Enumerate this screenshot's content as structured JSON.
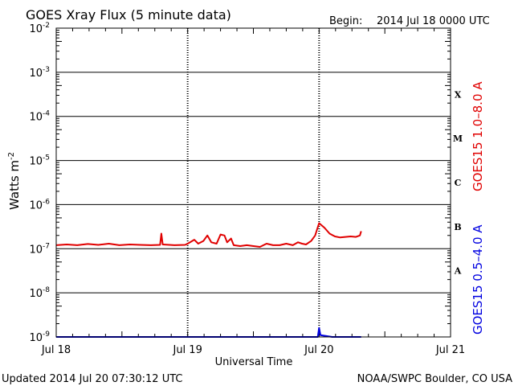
{
  "chart_data": {
    "type": "line",
    "title": "GOES Xray Flux (5 minute data)",
    "begin_label": "Begin:",
    "begin_value": "2014 Jul 18 0000 UTC",
    "xlabel": "Universal Time",
    "ylabel": "Watts m",
    "ylabel_sup": "-2",
    "y_scale": "log",
    "ylim": [
      1e-09,
      0.01
    ],
    "y_ticks": [
      {
        "base": "10",
        "exp": "-2"
      },
      {
        "base": "10",
        "exp": "-3"
      },
      {
        "base": "10",
        "exp": "-4"
      },
      {
        "base": "10",
        "exp": "-5"
      },
      {
        "base": "10",
        "exp": "-6"
      },
      {
        "base": "10",
        "exp": "-7"
      },
      {
        "base": "10",
        "exp": "-8"
      },
      {
        "base": "10",
        "exp": "-9"
      }
    ],
    "x_ticks": [
      "Jul 18",
      "Jul 19",
      "Jul 20",
      "Jul 21"
    ],
    "xlim_days": [
      0,
      3
    ],
    "flare_classes": [
      {
        "label": "X",
        "log_y": -3.5
      },
      {
        "label": "M",
        "log_y": -4.5
      },
      {
        "label": "C",
        "log_y": -5.5
      },
      {
        "label": "B",
        "log_y": -6.5
      },
      {
        "label": "A",
        "log_y": -7.5
      }
    ],
    "grid": true,
    "series": [
      {
        "name": "GOES15 1.0–8.0 A",
        "color": "#e00000",
        "points": [
          [
            0.0,
            1.2e-07
          ],
          [
            0.08,
            1.25e-07
          ],
          [
            0.16,
            1.2e-07
          ],
          [
            0.24,
            1.28e-07
          ],
          [
            0.32,
            1.22e-07
          ],
          [
            0.4,
            1.3e-07
          ],
          [
            0.48,
            1.2e-07
          ],
          [
            0.56,
            1.25e-07
          ],
          [
            0.64,
            1.22e-07
          ],
          [
            0.72,
            1.2e-07
          ],
          [
            0.79,
            1.22e-07
          ],
          [
            0.8,
            2.2e-07
          ],
          [
            0.81,
            1.25e-07
          ],
          [
            0.9,
            1.2e-07
          ],
          [
            0.98,
            1.22e-07
          ],
          [
            1.0,
            1.3e-07
          ],
          [
            1.05,
            1.6e-07
          ],
          [
            1.08,
            1.3e-07
          ],
          [
            1.12,
            1.5e-07
          ],
          [
            1.15,
            2e-07
          ],
          [
            1.18,
            1.4e-07
          ],
          [
            1.22,
            1.3e-07
          ],
          [
            1.25,
            2.1e-07
          ],
          [
            1.28,
            2e-07
          ],
          [
            1.3,
            1.4e-07
          ],
          [
            1.33,
            1.7e-07
          ],
          [
            1.35,
            1.2e-07
          ],
          [
            1.4,
            1.15e-07
          ],
          [
            1.45,
            1.2e-07
          ],
          [
            1.5,
            1.15e-07
          ],
          [
            1.55,
            1.1e-07
          ],
          [
            1.6,
            1.3e-07
          ],
          [
            1.65,
            1.2e-07
          ],
          [
            1.7,
            1.2e-07
          ],
          [
            1.75,
            1.3e-07
          ],
          [
            1.8,
            1.2e-07
          ],
          [
            1.84,
            1.4e-07
          ],
          [
            1.87,
            1.3e-07
          ],
          [
            1.9,
            1.25e-07
          ],
          [
            1.94,
            1.5e-07
          ],
          [
            1.97,
            2e-07
          ],
          [
            2.0,
            3.8e-07
          ],
          [
            2.04,
            3e-07
          ],
          [
            2.08,
            2.2e-07
          ],
          [
            2.12,
            1.9e-07
          ],
          [
            2.16,
            1.8e-07
          ],
          [
            2.2,
            1.85e-07
          ],
          [
            2.24,
            1.9e-07
          ],
          [
            2.28,
            1.85e-07
          ],
          [
            2.31,
            2e-07
          ],
          [
            2.32,
            2.5e-07
          ]
        ]
      },
      {
        "name": "GOES15 0.5–4.0 A",
        "color": "#0000e0",
        "points": [
          [
            0.0,
            1e-09
          ],
          [
            1.99,
            1e-09
          ],
          [
            2.0,
            1.6e-09
          ],
          [
            2.01,
            1.1e-09
          ],
          [
            2.1,
            1e-09
          ],
          [
            2.32,
            1e-09
          ]
        ]
      }
    ]
  },
  "footer": {
    "updated": "Updated 2014 Jul 20 07:30:12 UTC",
    "source": "NOAA/SWPC Boulder, CO USA"
  }
}
